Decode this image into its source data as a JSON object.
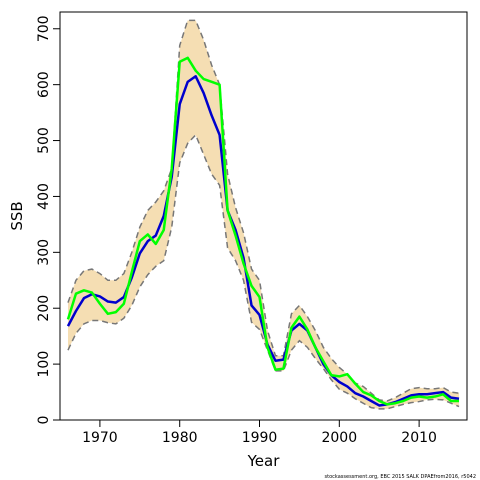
{
  "chart_data": {
    "type": "line",
    "xlabel": "Year",
    "ylabel": "SSB",
    "xlim": [
      1965,
      2016
    ],
    "ylim": [
      0,
      730
    ],
    "xticks": [
      1970,
      1980,
      1990,
      2000,
      2010
    ],
    "yticks": [
      0,
      100,
      200,
      300,
      400,
      500,
      600,
      700
    ],
    "grid": false,
    "credit": "stockassessment.org, EBC 2015 SALK DPAEfrom2016, r5042",
    "colors": {
      "band_fill": "#f5deb3",
      "band_edge": "#777777",
      "estimate": "#0000cd",
      "observed": "#00ff00"
    },
    "x": [
      1966,
      1967,
      1968,
      1969,
      1970,
      1971,
      1972,
      1973,
      1974,
      1975,
      1976,
      1977,
      1978,
      1979,
      1980,
      1981,
      1982,
      1983,
      1984,
      1985,
      1986,
      1987,
      1988,
      1989,
      1990,
      1991,
      1992,
      1993,
      1994,
      1995,
      1996,
      1997,
      1998,
      1999,
      2000,
      2001,
      2002,
      2003,
      2004,
      2005,
      2006,
      2007,
      2008,
      2009,
      2010,
      2011,
      2012,
      2013,
      2014,
      2015
    ],
    "band": {
      "lower": [
        125,
        155,
        172,
        178,
        178,
        174,
        172,
        182,
        205,
        238,
        260,
        275,
        285,
        345,
        460,
        495,
        510,
        475,
        440,
        420,
        308,
        285,
        250,
        175,
        162,
        125,
        88,
        88,
        125,
        142,
        130,
        110,
        92,
        72,
        55,
        48,
        38,
        30,
        22,
        20,
        20,
        24,
        28,
        31,
        33,
        36,
        37,
        36,
        30,
        24
      ],
      "upper": [
        210,
        250,
        267,
        270,
        262,
        250,
        250,
        262,
        300,
        345,
        375,
        390,
        410,
        450,
        670,
        715,
        715,
        680,
        635,
        600,
        440,
        380,
        335,
        270,
        250,
        160,
        115,
        115,
        190,
        205,
        185,
        160,
        130,
        110,
        94,
        82,
        66,
        60,
        48,
        36,
        34,
        40,
        48,
        56,
        58,
        56,
        56,
        58,
        50,
        48
      ]
    },
    "series": [
      {
        "name": "",
        "values": [
          168,
          195,
          218,
          225,
          221,
          212,
          210,
          220,
          255,
          298,
          320,
          330,
          365,
          435,
          565,
          605,
          615,
          585,
          545,
          510,
          375,
          340,
          290,
          205,
          188,
          135,
          106,
          108,
          160,
          172,
          160,
          130,
          100,
          80,
          68,
          60,
          48,
          42,
          34,
          26,
          28,
          32,
          38,
          44,
          46,
          46,
          48,
          50,
          40,
          38
        ]
      },
      {
        "name": "",
        "values": [
          180,
          226,
          232,
          228,
          208,
          190,
          193,
          208,
          265,
          320,
          332,
          315,
          340,
          450,
          641,
          648,
          625,
          610,
          605,
          600,
          375,
          330,
          280,
          240,
          220,
          130,
          90,
          92,
          165,
          185,
          162,
          130,
          105,
          80,
          78,
          82,
          65,
          50,
          44,
          34,
          28,
          30,
          34,
          40,
          42,
          40,
          42,
          46,
          34,
          34
        ]
      }
    ]
  }
}
